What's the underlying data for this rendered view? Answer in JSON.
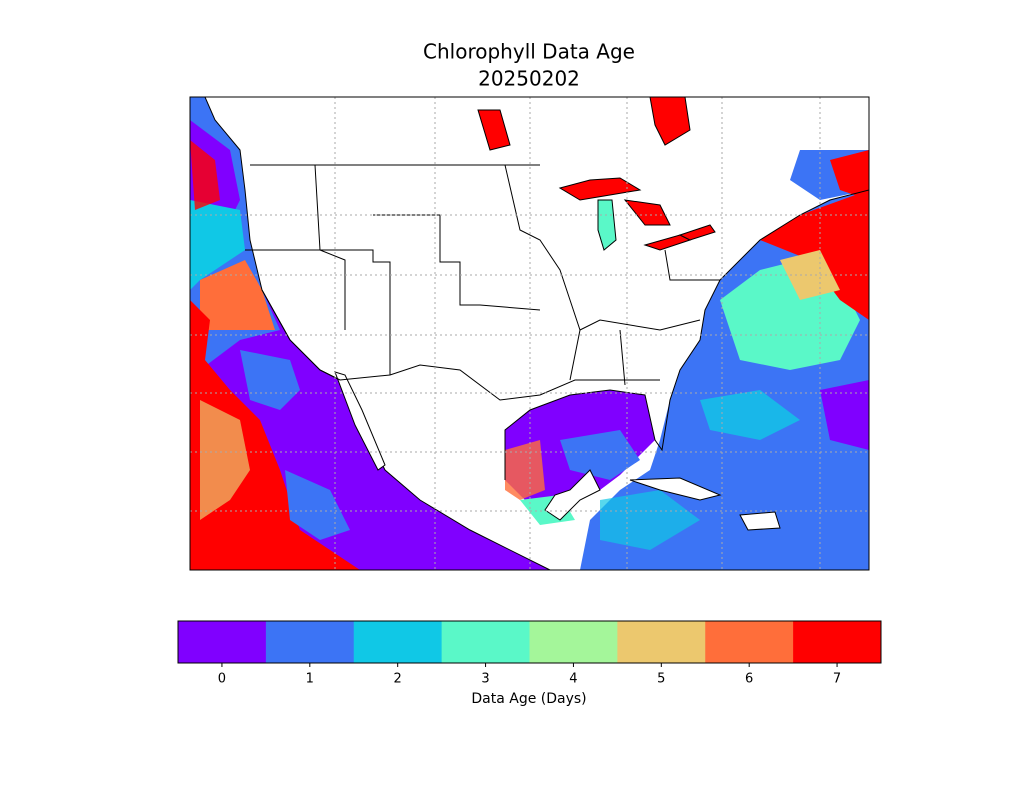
{
  "title": "Chlorophyll Data Age",
  "date": "20250202",
  "colorbar": {
    "label": "Data Age (Days)",
    "ticks": [
      0,
      1,
      2,
      3,
      4,
      5,
      6,
      7
    ],
    "colors": [
      "#8000ff",
      "#3c74f5",
      "#10c8e6",
      "#5af8c8",
      "#a4f69a",
      "#ecc86e",
      "#ff6e3a",
      "#ff0000"
    ]
  }
}
